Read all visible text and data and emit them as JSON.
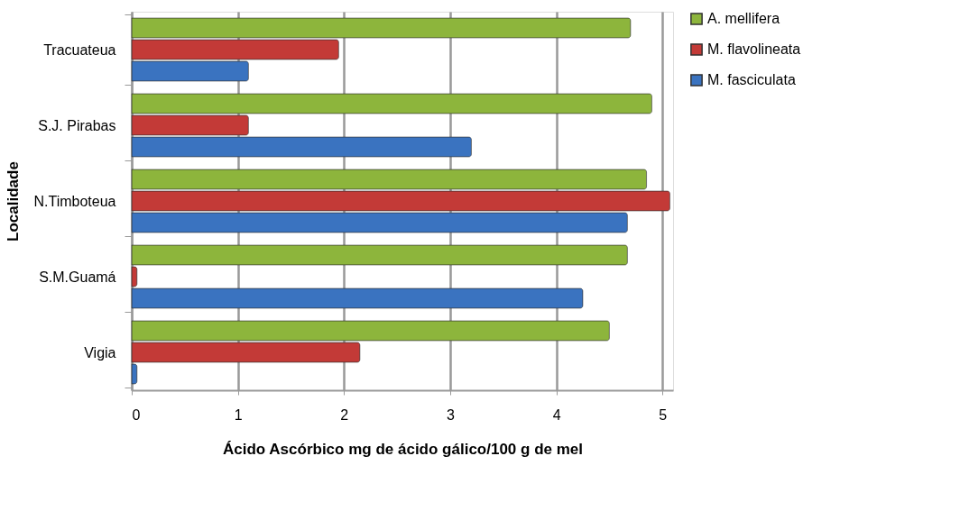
{
  "chart_data": {
    "type": "bar",
    "orientation": "horizontal",
    "xlabel": "Ácido Ascórbico mg de ácido gálico/100 g de mel",
    "ylabel": "Localidade",
    "categories": [
      "Tracuateua",
      "S.J. Pirabas",
      "N.Timboteua",
      "S.M.Guamá",
      "Vigia"
    ],
    "series": [
      {
        "name": "A. mellifera",
        "color": "#8db53c",
        "values": [
          4.7,
          4.9,
          4.85,
          4.67,
          4.5
        ]
      },
      {
        "name": "M. flavolineata",
        "color": "#c33a37",
        "values": [
          1.95,
          1.1,
          5.07,
          0.05,
          2.15
        ]
      },
      {
        "name": "M. fasciculata",
        "color": "#3a73c0",
        "values": [
          1.1,
          3.2,
          4.67,
          4.25,
          0.05
        ]
      }
    ],
    "xlim": [
      0,
      5.1
    ],
    "xticks": [
      0,
      1,
      2,
      3,
      4,
      5
    ],
    "grid": "x",
    "legend": "right"
  }
}
